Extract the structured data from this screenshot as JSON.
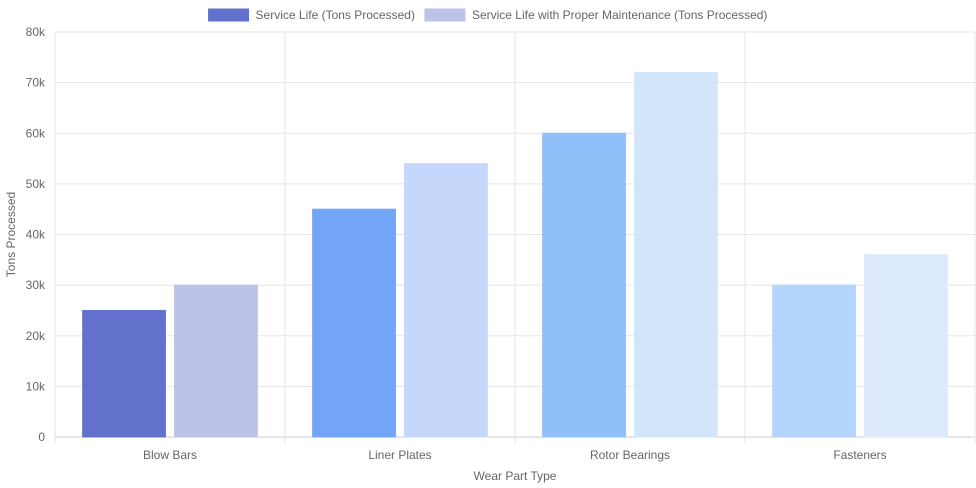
{
  "chart_data": {
    "type": "bar",
    "categories": [
      "Blow Bars",
      "Liner Plates",
      "Rotor Bearings",
      "Fasteners"
    ],
    "series": [
      {
        "name": "Service Life (Tons Processed)",
        "values": [
          25000,
          45000,
          60000,
          30000
        ],
        "legend_color": "#6272cc",
        "colors": [
          "#6272cc",
          "#73a5f7",
          "#90c0f9",
          "#b3d5fb"
        ]
      },
      {
        "name": "Service Life with Proper Maintenance (Tons Processed)",
        "values": [
          30000,
          54000,
          72000,
          36000
        ],
        "legend_color": "#bbc3e8",
        "colors": [
          "#bbc3e8",
          "#c5d8fb",
          "#d2e5fb",
          "#dceafc"
        ]
      }
    ],
    "title": "",
    "xlabel": "Wear Part Type",
    "ylabel": "Tons Processed",
    "ylim": [
      0,
      80000
    ],
    "yticks": [
      "0",
      "10k",
      "20k",
      "30k",
      "40k",
      "50k",
      "60k",
      "70k",
      "80k"
    ],
    "grid": true,
    "legend_position": "top-center"
  }
}
